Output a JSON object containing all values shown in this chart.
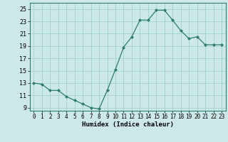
{
  "x": [
    0,
    1,
    2,
    3,
    4,
    5,
    6,
    7,
    8,
    9,
    10,
    11,
    12,
    13,
    14,
    15,
    16,
    17,
    18,
    19,
    20,
    21,
    22,
    23
  ],
  "y": [
    13,
    12.8,
    11.8,
    11.8,
    10.8,
    10.2,
    9.6,
    9.0,
    8.8,
    11.8,
    15.2,
    18.8,
    20.5,
    23.2,
    23.2,
    24.8,
    24.8,
    23.2,
    21.5,
    20.2,
    20.5,
    19.2,
    19.2,
    19.2
  ],
  "xlabel": "Humidex (Indice chaleur)",
  "ylabel": "",
  "xlim": [
    -0.5,
    23.5
  ],
  "ylim": [
    8.5,
    26
  ],
  "yticks": [
    9,
    11,
    13,
    15,
    17,
    19,
    21,
    23,
    25
  ],
  "xticks": [
    0,
    1,
    2,
    3,
    4,
    5,
    6,
    7,
    8,
    9,
    10,
    11,
    12,
    13,
    14,
    15,
    16,
    17,
    18,
    19,
    20,
    21,
    22,
    23
  ],
  "line_color": "#2e7d6e",
  "marker_color": "#2e7d6e",
  "bg_color": "#cce8e8",
  "grid_color": "#99cccc",
  "tick_fontsize": 5.5,
  "xlabel_fontsize": 6.5
}
